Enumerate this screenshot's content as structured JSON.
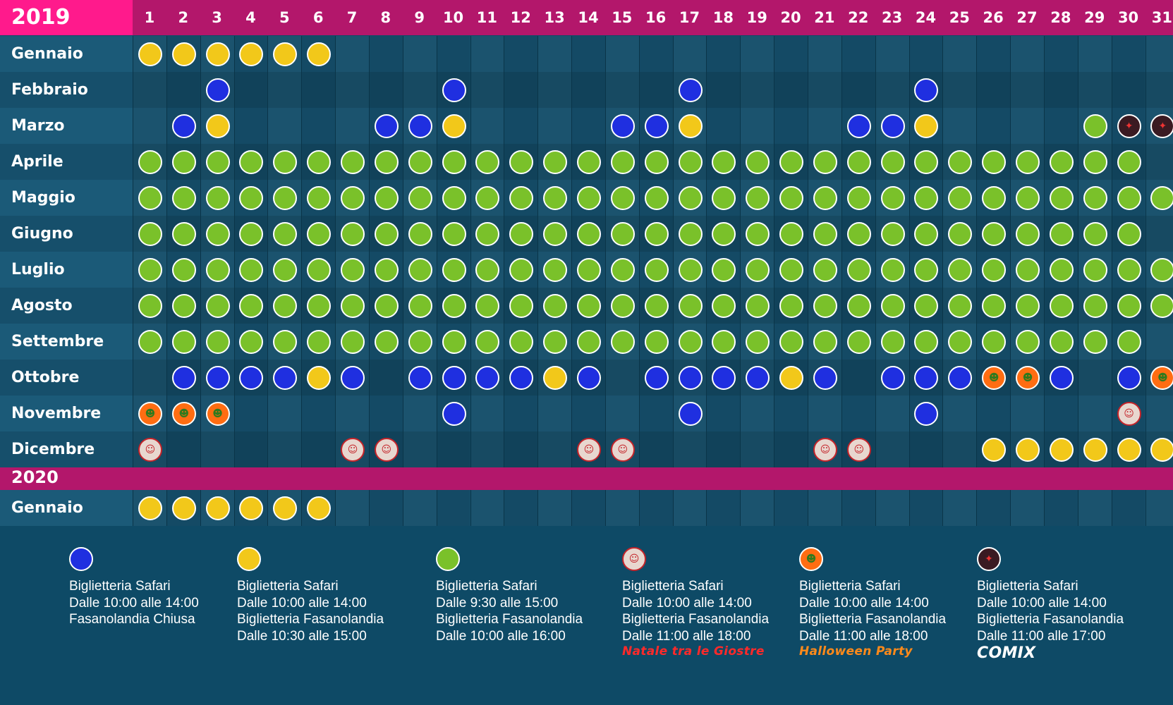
{
  "year_1": "2019",
  "year_2": "2020",
  "days": [
    "1",
    "2",
    "3",
    "4",
    "5",
    "6",
    "7",
    "8",
    "9",
    "10",
    "11",
    "12",
    "13",
    "14",
    "15",
    "16",
    "17",
    "18",
    "19",
    "20",
    "21",
    "22",
    "23",
    "24",
    "25",
    "26",
    "27",
    "28",
    "29",
    "30",
    "31"
  ],
  "months_2019": [
    {
      "name": "Gennaio",
      "days": {
        "1": "Y",
        "2": "Y",
        "3": "Y",
        "4": "Y",
        "5": "Y",
        "6": "Y"
      }
    },
    {
      "name": "Febbraio",
      "days": {
        "3": "B",
        "10": "B",
        "17": "B",
        "24": "B"
      }
    },
    {
      "name": "Marzo",
      "days": {
        "2": "B",
        "3": "Y",
        "8": "B",
        "9": "B",
        "10": "Y",
        "15": "B",
        "16": "B",
        "17": "Y",
        "22": "B",
        "23": "B",
        "24": "Y",
        "29": "G",
        "30": "C",
        "31": "C"
      }
    },
    {
      "name": "Aprile",
      "days": {
        "1": "G",
        "2": "G",
        "3": "G",
        "4": "G",
        "5": "G",
        "6": "G",
        "7": "G",
        "8": "G",
        "9": "G",
        "10": "G",
        "11": "G",
        "12": "G",
        "13": "G",
        "14": "G",
        "15": "G",
        "16": "G",
        "17": "G",
        "18": "G",
        "19": "G",
        "20": "G",
        "21": "G",
        "22": "G",
        "23": "G",
        "24": "G",
        "25": "G",
        "26": "G",
        "27": "G",
        "28": "G",
        "29": "G",
        "30": "G"
      }
    },
    {
      "name": "Maggio",
      "days": {
        "1": "G",
        "2": "G",
        "3": "G",
        "4": "G",
        "5": "G",
        "6": "G",
        "7": "G",
        "8": "G",
        "9": "G",
        "10": "G",
        "11": "G",
        "12": "G",
        "13": "G",
        "14": "G",
        "15": "G",
        "16": "G",
        "17": "G",
        "18": "G",
        "19": "G",
        "20": "G",
        "21": "G",
        "22": "G",
        "23": "G",
        "24": "G",
        "25": "G",
        "26": "G",
        "27": "G",
        "28": "G",
        "29": "G",
        "30": "G",
        "31": "G"
      }
    },
    {
      "name": "Giugno",
      "days": {
        "1": "G",
        "2": "G",
        "3": "G",
        "4": "G",
        "5": "G",
        "6": "G",
        "7": "G",
        "8": "G",
        "9": "G",
        "10": "G",
        "11": "G",
        "12": "G",
        "13": "G",
        "14": "G",
        "15": "G",
        "16": "G",
        "17": "G",
        "18": "G",
        "19": "G",
        "20": "G",
        "21": "G",
        "22": "G",
        "23": "G",
        "24": "G",
        "25": "G",
        "26": "G",
        "27": "G",
        "28": "G",
        "29": "G",
        "30": "G"
      }
    },
    {
      "name": "Luglio",
      "days": {
        "1": "G",
        "2": "G",
        "3": "G",
        "4": "G",
        "5": "G",
        "6": "G",
        "7": "G",
        "8": "G",
        "9": "G",
        "10": "G",
        "11": "G",
        "12": "G",
        "13": "G",
        "14": "G",
        "15": "G",
        "16": "G",
        "17": "G",
        "18": "G",
        "19": "G",
        "20": "G",
        "21": "G",
        "22": "G",
        "23": "G",
        "24": "G",
        "25": "G",
        "26": "G",
        "27": "G",
        "28": "G",
        "29": "G",
        "30": "G",
        "31": "G"
      }
    },
    {
      "name": "Agosto",
      "days": {
        "1": "G",
        "2": "G",
        "3": "G",
        "4": "G",
        "5": "G",
        "6": "G",
        "7": "G",
        "8": "G",
        "9": "G",
        "10": "G",
        "11": "G",
        "12": "G",
        "13": "G",
        "14": "G",
        "15": "G",
        "16": "G",
        "17": "G",
        "18": "G",
        "19": "G",
        "20": "G",
        "21": "G",
        "22": "G",
        "23": "G",
        "24": "G",
        "25": "G",
        "26": "G",
        "27": "G",
        "28": "G",
        "29": "G",
        "30": "G",
        "31": "G"
      }
    },
    {
      "name": "Settembre",
      "days": {
        "1": "G",
        "2": "G",
        "3": "G",
        "4": "G",
        "5": "G",
        "6": "G",
        "7": "G",
        "8": "G",
        "9": "G",
        "10": "G",
        "11": "G",
        "12": "G",
        "13": "G",
        "14": "G",
        "15": "G",
        "16": "G",
        "17": "G",
        "18": "G",
        "19": "G",
        "20": "G",
        "21": "G",
        "22": "G",
        "23": "G",
        "24": "G",
        "25": "G",
        "26": "G",
        "27": "G",
        "28": "G",
        "29": "G",
        "30": "G"
      }
    },
    {
      "name": "Ottobre",
      "days": {
        "2": "B",
        "3": "B",
        "4": "B",
        "5": "B",
        "6": "Y",
        "7": "B",
        "9": "B",
        "10": "B",
        "11": "B",
        "12": "B",
        "13": "Y",
        "14": "B",
        "16": "B",
        "17": "B",
        "18": "B",
        "19": "B",
        "20": "Y",
        "21": "B",
        "23": "B",
        "24": "B",
        "25": "B",
        "26": "H",
        "27": "H",
        "28": "B",
        "30": "B",
        "31": "H"
      }
    },
    {
      "name": "Novembre",
      "days": {
        "1": "H",
        "2": "H",
        "3": "H",
        "10": "B",
        "17": "B",
        "24": "B",
        "30": "X"
      }
    },
    {
      "name": "Dicembre",
      "days": {
        "1": "X",
        "7": "X",
        "8": "X",
        "14": "X",
        "15": "X",
        "21": "X",
        "22": "X",
        "26": "Y",
        "27": "Y",
        "28": "Y",
        "29": "Y",
        "30": "Y",
        "31": "Y"
      }
    }
  ],
  "months_2020": [
    {
      "name": "Gennaio",
      "days": {
        "1": "Y",
        "2": "Y",
        "3": "Y",
        "4": "Y",
        "5": "Y",
        "6": "Y"
      }
    }
  ],
  "legend": [
    {
      "type": "B",
      "lines": [
        "Biglietteria Safari",
        "Dalle 10:00 alle 14:00",
        "Fasanolandia Chiusa"
      ],
      "event": ""
    },
    {
      "type": "Y",
      "lines": [
        "Biglietteria Safari",
        "Dalle 10:00 alle 14:00",
        "Biglietteria Fasanolandia",
        "Dalle 10:30 alle 15:00"
      ],
      "event": ""
    },
    {
      "type": "G",
      "lines": [
        "Biglietteria Safari",
        "Dalle 9:30 alle 15:00",
        "Biglietteria Fasanolandia",
        "Dalle 10:00 alle 16:00"
      ],
      "event": ""
    },
    {
      "type": "X",
      "lines": [
        "Biglietteria Safari",
        "Dalle 10:00 alle 14:00",
        "Biglietteria Fasanolandia",
        "Dalle 11:00 alle 18:00"
      ],
      "event": "Natale tra le Giostre"
    },
    {
      "type": "H",
      "lines": [
        "Biglietteria Safari",
        "Dalle 10:00 alle 14:00",
        "Biglietteria Fasanolandia",
        "Dalle 11:00 alle 18:00"
      ],
      "event": "Halloween Party"
    },
    {
      "type": "C",
      "lines": [
        "Biglietteria Safari",
        "Dalle 10:00 alle 14:00",
        "Biglietteria Fasanolandia",
        "Dalle 11:00 alle 17:00"
      ],
      "event": "COMIX"
    }
  ],
  "icons": {
    "X": "santa-icon",
    "H": "zombie-icon",
    "C": "compass-icon"
  },
  "colors": {
    "bg": "#0e4a66",
    "header": "#b3176b",
    "year": "#ff1a8c",
    "blue": "#1f2fe0",
    "yellow": "#f2c81a",
    "green": "#7ac12a",
    "halloween": "#ff6d12"
  }
}
